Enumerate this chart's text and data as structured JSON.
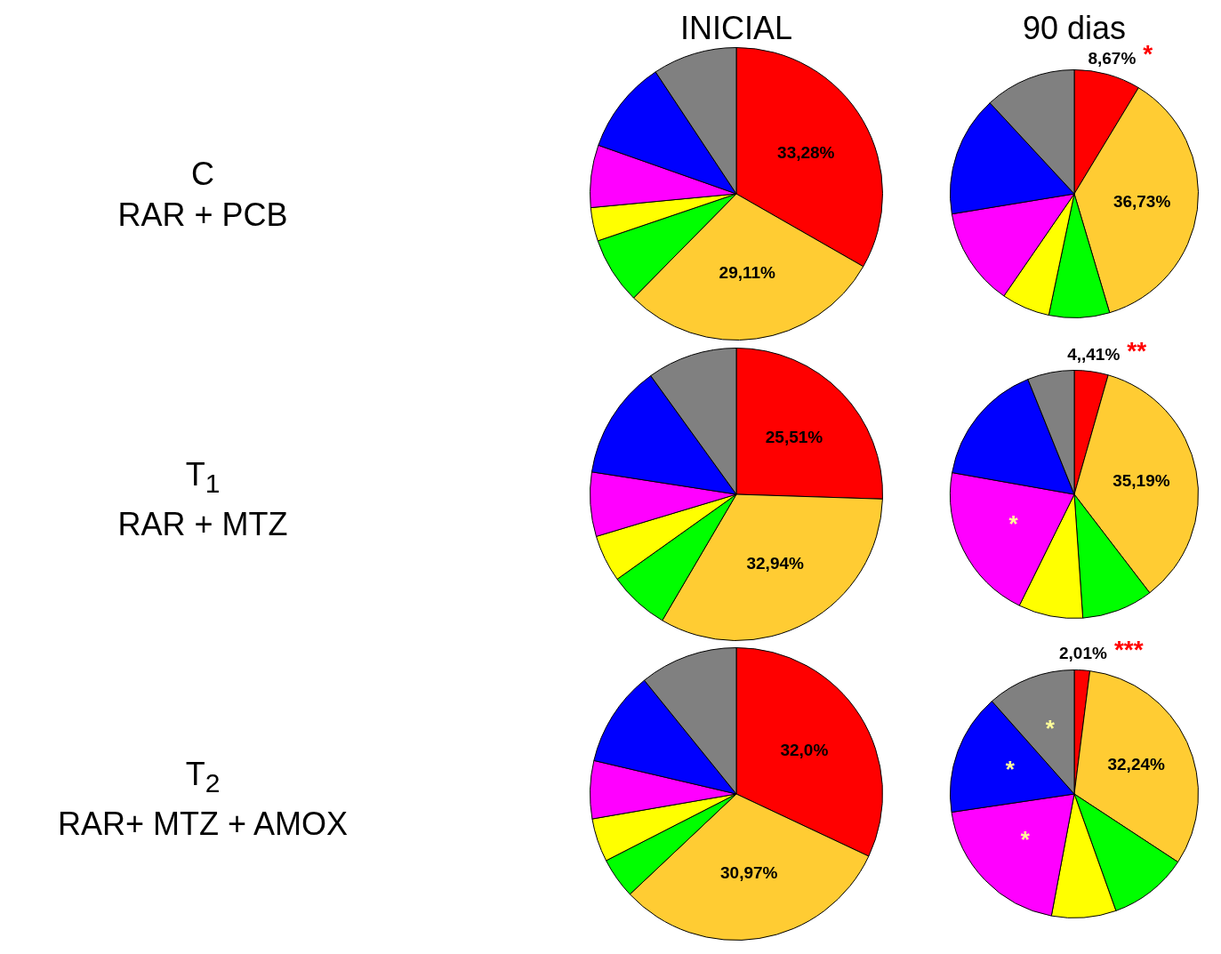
{
  "chart_data": [
    {
      "type": "pie",
      "title": "INICIAL",
      "ylabel": "C\nRAR + PCB",
      "categories": [
        null,
        null,
        null,
        null,
        null,
        null,
        null
      ],
      "values": [
        33.28,
        29.11,
        7.4,
        3.7,
        6.9,
        10.3,
        9.31
      ],
      "colors": [
        "#ff0000",
        "#ffcc33",
        "#00ff00",
        "#ffff00",
        "#ff00ff",
        "#0000ff",
        "#808080"
      ],
      "value_labels": [
        "33,28%",
        "29,11%",
        null,
        null,
        null,
        null,
        null
      ]
    },
    {
      "type": "pie",
      "title": "90 dias",
      "categories": [
        null,
        null,
        null,
        null,
        null,
        null,
        null
      ],
      "values": [
        8.67,
        36.73,
        7.9,
        6.3,
        12.8,
        15.7,
        11.9
      ],
      "colors": [
        "#ff0000",
        "#ffcc33",
        "#00ff00",
        "#ffff00",
        "#ff00ff",
        "#0000ff",
        "#808080"
      ],
      "value_labels": [
        "8,67%",
        "36,73%",
        null,
        null,
        null,
        null,
        null
      ],
      "annotations": [
        "*"
      ]
    },
    {
      "type": "pie",
      "ylabel": "T$_{1}$\nRAR + MTZ",
      "categories": [
        null,
        null,
        null,
        null,
        null,
        null,
        null
      ],
      "values": [
        25.51,
        32.94,
        6.7,
        5.2,
        7.1,
        12.6,
        9.95
      ],
      "colors": [
        "#ff0000",
        "#ffcc33",
        "#00ff00",
        "#ffff00",
        "#ff00ff",
        "#0000ff",
        "#808080"
      ],
      "value_labels": [
        "25,51%",
        "32,94%",
        null,
        null,
        null,
        null,
        null
      ]
    },
    {
      "type": "pie",
      "categories": [
        null,
        null,
        null,
        null,
        null,
        null,
        null
      ],
      "values": [
        4.41,
        35.19,
        9.3,
        8.4,
        20.5,
        16.1,
        6.1
      ],
      "colors": [
        "#ff0000",
        "#ffcc33",
        "#00ff00",
        "#ffff00",
        "#ff00ff",
        "#0000ff",
        "#808080"
      ],
      "value_labels": [
        "4,,41%",
        "35,19%",
        null,
        null,
        "*",
        null,
        null
      ],
      "annotations": [
        "**"
      ]
    },
    {
      "type": "pie",
      "ylabel": "T$_{2}$\nRAR+ MTZ + AMOX",
      "categories": [
        null,
        null,
        null,
        null,
        null,
        null,
        null
      ],
      "values": [
        32.0,
        30.97,
        4.5,
        4.8,
        6.4,
        10.5,
        10.83
      ],
      "colors": [
        "#ff0000",
        "#ffcc33",
        "#00ff00",
        "#ffff00",
        "#ff00ff",
        "#0000ff",
        "#808080"
      ],
      "value_labels": [
        "32,0%",
        "30,97%",
        null,
        null,
        null,
        null,
        null
      ]
    },
    {
      "type": "pie",
      "categories": [
        null,
        null,
        null,
        null,
        null,
        null,
        null
      ],
      "values": [
        2.01,
        32.24,
        10.3,
        8.4,
        19.7,
        15.8,
        11.55
      ],
      "colors": [
        "#ff0000",
        "#ffcc33",
        "#00ff00",
        "#ffff00",
        "#ff00ff",
        "#0000ff",
        "#808080"
      ],
      "value_labels": [
        "2,01%",
        "32,24%",
        null,
        null,
        "*",
        "*",
        "*"
      ],
      "annotations": [
        "***"
      ]
    }
  ]
}
